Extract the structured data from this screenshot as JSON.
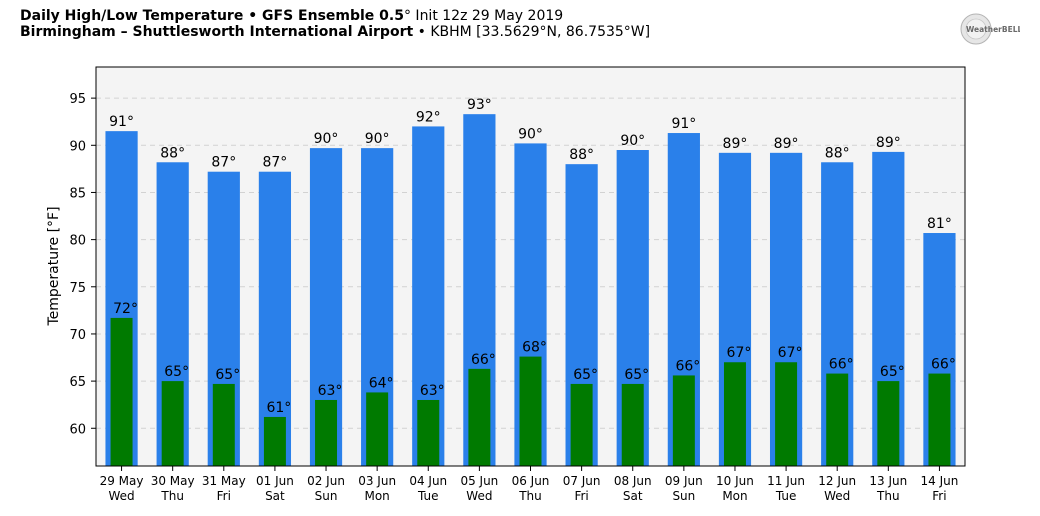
{
  "header": {
    "title_bold": "Daily High/Low Temperature • GFS Ensemble 0.5",
    "title_deg": "°",
    "title_rest": " Init 12z 29 May 2019",
    "location_bold": "Birmingham – Shuttlesworth International Airport",
    "location_rest": " • KBHM [33.5629°N, 86.7535°W]"
  },
  "logo": {
    "text": "WeatherBELL",
    "icon": "weatherbell-logo-icon"
  },
  "colors": {
    "high": "#2a80ea",
    "low": "#007a00",
    "plot_bg": "#f4f4f4",
    "grid": "#d2d2d2"
  },
  "chart_data": {
    "type": "bar",
    "ylabel": "Temperature [°F]",
    "ylim": [
      56,
      98.3
    ],
    "yticks": [
      60,
      65,
      70,
      75,
      80,
      85,
      90,
      95
    ],
    "grid": true,
    "categories": [
      "29 May",
      "30 May",
      "31 May",
      "01 Jun",
      "02 Jun",
      "03 Jun",
      "04 Jun",
      "05 Jun",
      "06 Jun",
      "07 Jun",
      "08 Jun",
      "09 Jun",
      "10 Jun",
      "11 Jun",
      "12 Jun",
      "13 Jun",
      "14 Jun"
    ],
    "weekdays": [
      "Wed",
      "Thu",
      "Fri",
      "Sat",
      "Sun",
      "Mon",
      "Tue",
      "Wed",
      "Thu",
      "Fri",
      "Sat",
      "Sun",
      "Mon",
      "Tue",
      "Wed",
      "Thu",
      "Fri"
    ],
    "series": [
      {
        "values": [
          91.5,
          88.2,
          87.2,
          87.2,
          89.7,
          89.7,
          92.0,
          93.3,
          90.2,
          88.0,
          89.5,
          91.3,
          89.2,
          89.2,
          88.2,
          89.3,
          80.7
        ],
        "labels": [
          "91°",
          "88°",
          "87°",
          "87°",
          "90°",
          "90°",
          "92°",
          "93°",
          "90°",
          "88°",
          "90°",
          "91°",
          "89°",
          "89°",
          "88°",
          "89°",
          "81°"
        ]
      },
      {
        "values": [
          71.7,
          65.0,
          64.7,
          61.2,
          63.0,
          63.8,
          63.0,
          66.3,
          67.6,
          64.7,
          64.7,
          65.6,
          67.0,
          67.0,
          65.8,
          65.0,
          65.8
        ],
        "labels": [
          "72°",
          "65°",
          "65°",
          "61°",
          "63°",
          "64°",
          "63°",
          "66°",
          "68°",
          "65°",
          "65°",
          "66°",
          "67°",
          "67°",
          "66°",
          "65°",
          "66°"
        ]
      }
    ]
  }
}
